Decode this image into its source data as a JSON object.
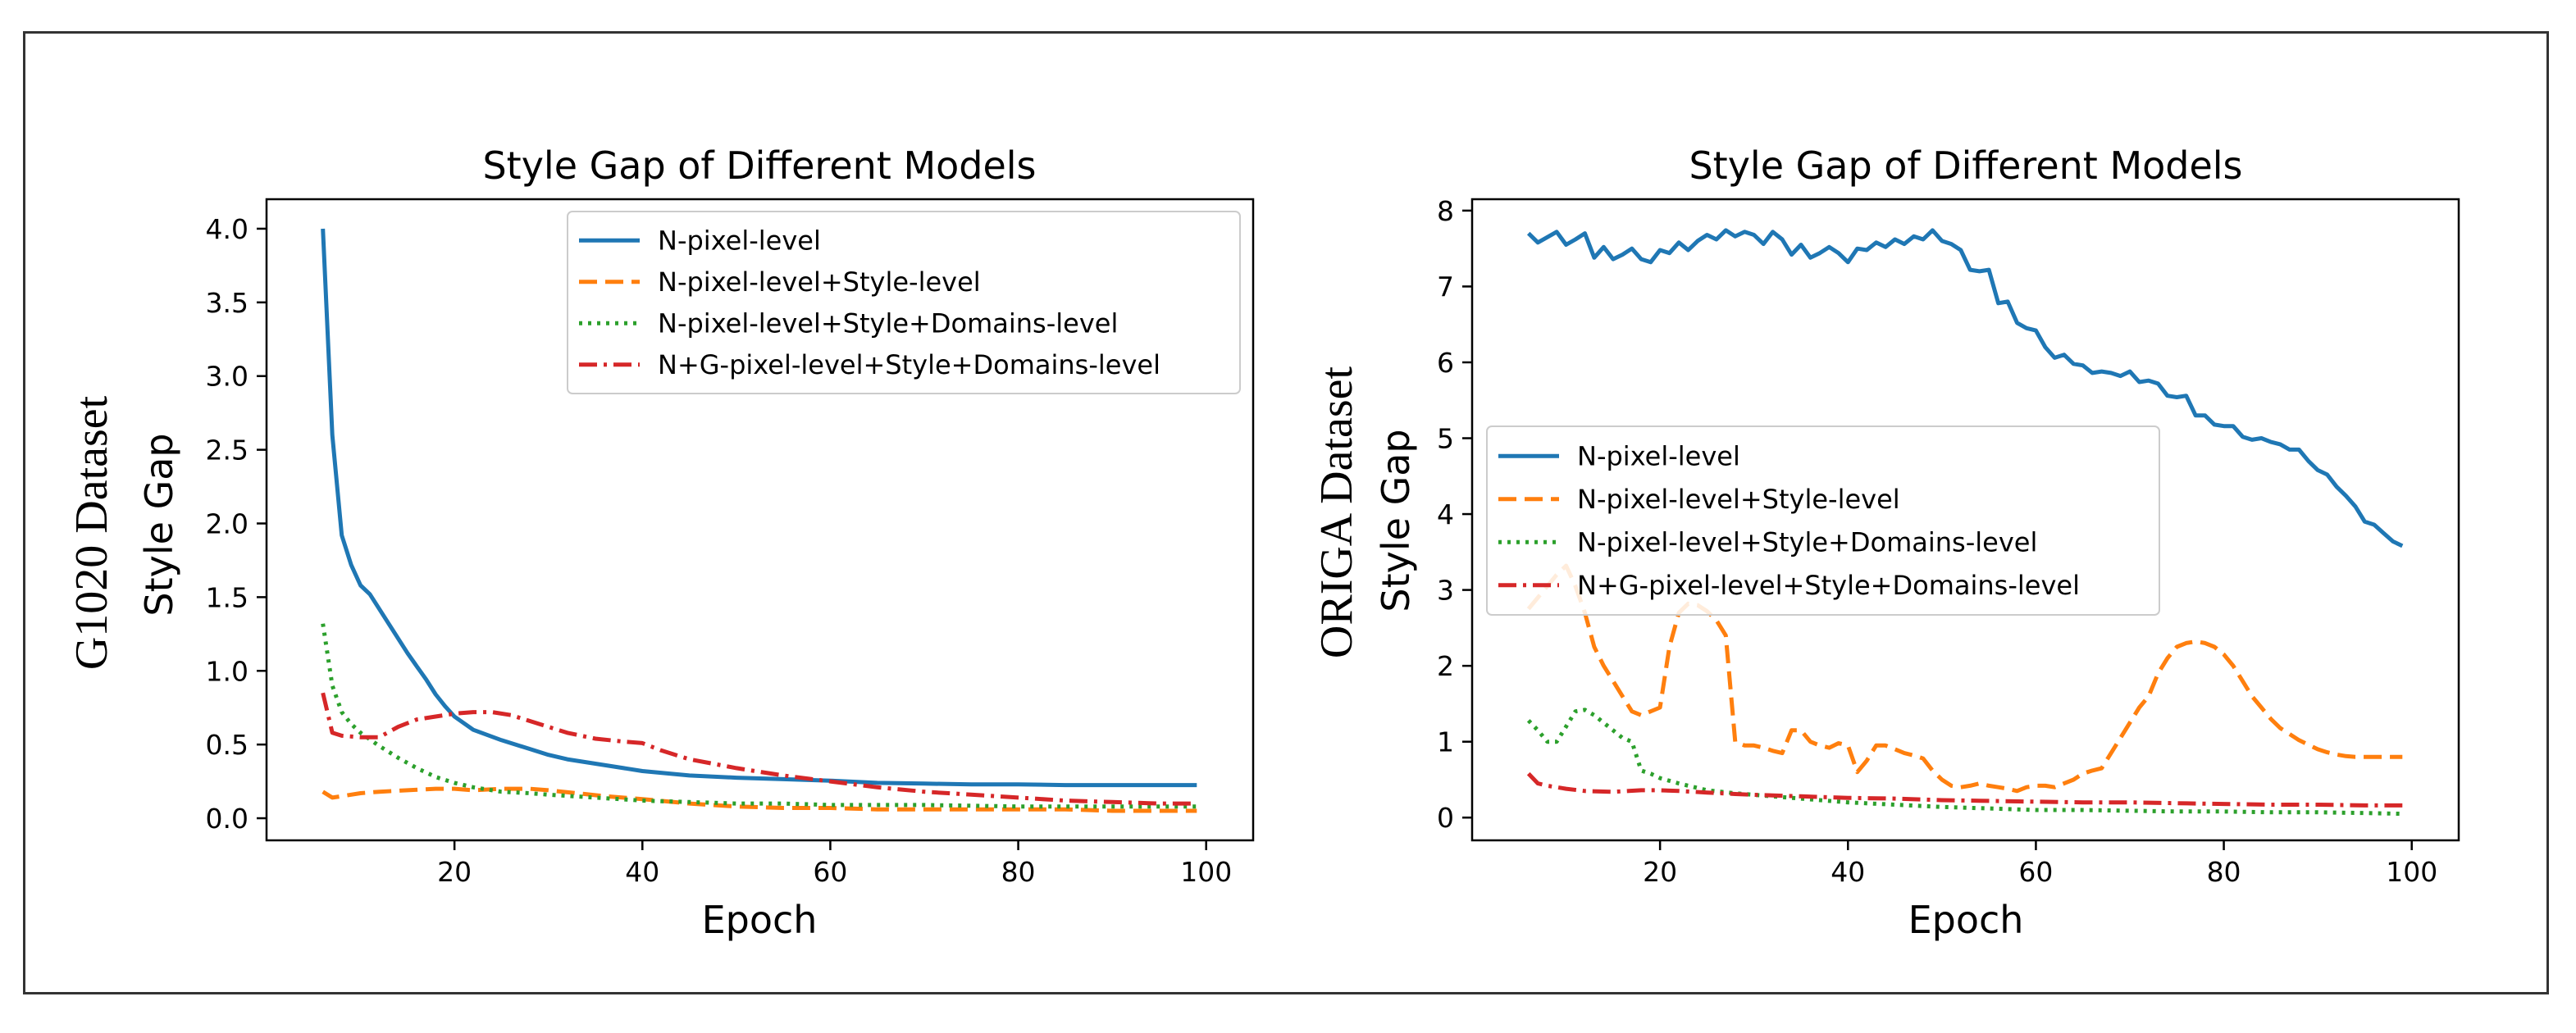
{
  "chart_data": [
    {
      "type": "line",
      "title": "Style Gap of Different Models",
      "dataset_label": "G1020 Dataset",
      "xlabel": "Epoch",
      "ylabel": "Style Gap",
      "xlim": [
        0,
        105
      ],
      "ylim": [
        -0.15,
        4.2
      ],
      "xticks": [
        20,
        40,
        60,
        80,
        100
      ],
      "yticks": [
        "0.0",
        "0.5",
        "1.0",
        "1.5",
        "2.0",
        "2.5",
        "3.0",
        "3.5",
        "4.0"
      ],
      "legend_position": "upper right",
      "series": [
        {
          "name": "N-pixel-level",
          "style": "solid",
          "color": "#1f77b4",
          "x": [
            6,
            7,
            8,
            9,
            10,
            11,
            12,
            13,
            14,
            15,
            16,
            17,
            18,
            19,
            20,
            22,
            25,
            28,
            30,
            32,
            35,
            38,
            40,
            45,
            50,
            55,
            60,
            65,
            70,
            75,
            80,
            85,
            90,
            95,
            99
          ],
          "y": [
            4.0,
            2.6,
            1.92,
            1.72,
            1.58,
            1.52,
            1.42,
            1.32,
            1.22,
            1.12,
            1.03,
            0.94,
            0.84,
            0.76,
            0.69,
            0.6,
            0.53,
            0.47,
            0.43,
            0.4,
            0.37,
            0.34,
            0.32,
            0.29,
            0.275,
            0.265,
            0.255,
            0.24,
            0.235,
            0.23,
            0.23,
            0.225,
            0.225,
            0.225,
            0.225
          ]
        },
        {
          "name": "N-pixel-level+Style-level",
          "style": "dashed",
          "color": "#ff7f0e",
          "x": [
            6,
            7,
            8,
            10,
            12,
            15,
            18,
            20,
            22,
            25,
            28,
            30,
            33,
            36,
            40,
            45,
            50,
            55,
            60,
            65,
            70,
            75,
            80,
            85,
            90,
            95,
            99
          ],
          "y": [
            0.18,
            0.14,
            0.15,
            0.17,
            0.18,
            0.19,
            0.2,
            0.2,
            0.19,
            0.2,
            0.2,
            0.19,
            0.17,
            0.15,
            0.13,
            0.1,
            0.08,
            0.07,
            0.07,
            0.06,
            0.06,
            0.06,
            0.06,
            0.06,
            0.05,
            0.05,
            0.05
          ]
        },
        {
          "name": "N-pixel-level+Style+Domains-level",
          "style": "dotted",
          "color": "#2ca02c",
          "x": [
            6,
            7,
            8,
            9,
            10,
            12,
            14,
            16,
            18,
            20,
            22,
            25,
            28,
            30,
            35,
            40,
            45,
            50,
            55,
            60,
            65,
            70,
            75,
            80,
            85,
            90,
            95,
            99
          ],
          "y": [
            1.32,
            0.9,
            0.72,
            0.64,
            0.58,
            0.49,
            0.41,
            0.34,
            0.28,
            0.24,
            0.21,
            0.18,
            0.17,
            0.16,
            0.14,
            0.12,
            0.11,
            0.1,
            0.1,
            0.09,
            0.09,
            0.09,
            0.085,
            0.08,
            0.08,
            0.08,
            0.08,
            0.08
          ]
        },
        {
          "name": "N+G-pixel-level+Style+Domains-level",
          "style": "dashdot",
          "color": "#d62728",
          "x": [
            6,
            7,
            8,
            10,
            12,
            14,
            16,
            18,
            20,
            22,
            24,
            26,
            28,
            30,
            32,
            35,
            38,
            40,
            42,
            45,
            50,
            55,
            60,
            65,
            70,
            75,
            80,
            85,
            90,
            95,
            99
          ],
          "y": [
            0.85,
            0.58,
            0.56,
            0.55,
            0.55,
            0.62,
            0.67,
            0.69,
            0.71,
            0.72,
            0.72,
            0.7,
            0.66,
            0.62,
            0.58,
            0.54,
            0.52,
            0.51,
            0.46,
            0.4,
            0.34,
            0.29,
            0.25,
            0.21,
            0.18,
            0.16,
            0.14,
            0.12,
            0.11,
            0.1,
            0.1
          ]
        }
      ]
    },
    {
      "type": "line",
      "title": "Style Gap of Different Models",
      "dataset_label": "ORIGA Dataset",
      "xlabel": "Epoch",
      "ylabel": "Style Gap",
      "xlim": [
        0,
        105
      ],
      "ylim": [
        -0.3,
        8.15
      ],
      "xticks": [
        20,
        40,
        60,
        80,
        100
      ],
      "yticks": [
        "0",
        "1",
        "2",
        "3",
        "4",
        "5",
        "6",
        "7",
        "8"
      ],
      "legend_position": "center left",
      "series": [
        {
          "name": "N-pixel-level",
          "style": "solid",
          "color": "#1f77b4",
          "x": [
            6,
            7,
            8,
            9,
            10,
            11,
            12,
            13,
            14,
            15,
            16,
            17,
            18,
            19,
            20,
            21,
            22,
            23,
            24,
            25,
            26,
            27,
            28,
            29,
            30,
            31,
            32,
            33,
            34,
            35,
            36,
            37,
            38,
            39,
            40,
            41,
            42,
            43,
            44,
            45,
            46,
            47,
            48,
            49,
            50,
            51,
            52,
            53,
            54,
            55,
            56,
            57,
            58,
            59,
            60,
            61,
            62,
            63,
            64,
            65,
            66,
            67,
            68,
            69,
            70,
            71,
            72,
            73,
            74,
            75,
            76,
            77,
            78,
            79,
            80,
            81,
            82,
            83,
            84,
            85,
            86,
            87,
            88,
            89,
            90,
            91,
            92,
            93,
            94,
            95,
            96,
            97,
            98,
            99
          ],
          "y": [
            7.7,
            7.58,
            7.65,
            7.72,
            7.55,
            7.62,
            7.7,
            7.38,
            7.52,
            7.36,
            7.42,
            7.5,
            7.36,
            7.32,
            7.48,
            7.44,
            7.58,
            7.48,
            7.6,
            7.68,
            7.62,
            7.74,
            7.66,
            7.72,
            7.68,
            7.56,
            7.72,
            7.62,
            7.42,
            7.55,
            7.38,
            7.44,
            7.52,
            7.44,
            7.32,
            7.5,
            7.48,
            7.58,
            7.52,
            7.62,
            7.56,
            7.66,
            7.62,
            7.74,
            7.6,
            7.56,
            7.48,
            7.22,
            7.2,
            7.22,
            6.78,
            6.8,
            6.52,
            6.45,
            6.42,
            6.2,
            6.06,
            6.1,
            5.98,
            5.96,
            5.86,
            5.88,
            5.86,
            5.82,
            5.88,
            5.74,
            5.76,
            5.72,
            5.56,
            5.54,
            5.56,
            5.3,
            5.3,
            5.18,
            5.16,
            5.16,
            5.02,
            4.98,
            5.0,
            4.95,
            4.92,
            4.85,
            4.85,
            4.7,
            4.58,
            4.52,
            4.36,
            4.24,
            4.1,
            3.9,
            3.86,
            3.75,
            3.64,
            3.58
          ]
        },
        {
          "name": "N-pixel-level+Style-level",
          "style": "dashed",
          "color": "#ff7f0e",
          "x": [
            6,
            7,
            8,
            9,
            10,
            11,
            12,
            13,
            14,
            15,
            16,
            17,
            18,
            19,
            20,
            21,
            22,
            23,
            24,
            25,
            26,
            27,
            28,
            29,
            30,
            31,
            32,
            33,
            34,
            35,
            36,
            37,
            38,
            39,
            40,
            41,
            42,
            43,
            44,
            45,
            46,
            47,
            48,
            49,
            50,
            51,
            52,
            53,
            54,
            55,
            56,
            57,
            58,
            59,
            60,
            61,
            62,
            63,
            64,
            65,
            66,
            67,
            68,
            69,
            70,
            71,
            72,
            73,
            74,
            75,
            76,
            77,
            78,
            79,
            80,
            81,
            82,
            83,
            84,
            85,
            86,
            87,
            88,
            89,
            90,
            91,
            92,
            93,
            94,
            95,
            96,
            97,
            98,
            99
          ],
          "y": [
            2.75,
            2.9,
            3.05,
            3.2,
            3.32,
            3.05,
            2.7,
            2.25,
            2.0,
            1.8,
            1.6,
            1.4,
            1.35,
            1.4,
            1.45,
            2.25,
            2.7,
            2.82,
            2.8,
            2.72,
            2.6,
            2.4,
            1.0,
            0.95,
            0.95,
            0.92,
            0.88,
            0.85,
            1.15,
            1.15,
            1.0,
            0.95,
            0.92,
            0.98,
            0.95,
            0.6,
            0.75,
            0.95,
            0.95,
            0.9,
            0.85,
            0.82,
            0.78,
            0.62,
            0.5,
            0.42,
            0.4,
            0.42,
            0.45,
            0.42,
            0.4,
            0.38,
            0.35,
            0.4,
            0.42,
            0.42,
            0.4,
            0.45,
            0.5,
            0.58,
            0.62,
            0.65,
            0.85,
            1.05,
            1.25,
            1.45,
            1.6,
            1.9,
            2.1,
            2.25,
            2.3,
            2.32,
            2.3,
            2.25,
            2.15,
            2.0,
            1.8,
            1.6,
            1.45,
            1.3,
            1.18,
            1.1,
            1.02,
            0.96,
            0.9,
            0.86,
            0.83,
            0.81,
            0.8,
            0.8,
            0.8,
            0.8,
            0.8,
            0.8
          ]
        },
        {
          "name": "N-pixel-level+Style+Domains-level",
          "style": "dotted",
          "color": "#2ca02c",
          "x": [
            6,
            7,
            8,
            9,
            10,
            11,
            12,
            13,
            14,
            15,
            16,
            17,
            18,
            19,
            20,
            22,
            25,
            28,
            30,
            35,
            40,
            45,
            50,
            55,
            60,
            65,
            70,
            75,
            80,
            85,
            90,
            95,
            99
          ],
          "y": [
            1.28,
            1.15,
            1.0,
            1.0,
            1.2,
            1.4,
            1.42,
            1.35,
            1.25,
            1.15,
            1.05,
            1.0,
            0.62,
            0.58,
            0.52,
            0.45,
            0.36,
            0.32,
            0.3,
            0.25,
            0.2,
            0.17,
            0.14,
            0.12,
            0.1,
            0.1,
            0.09,
            0.08,
            0.08,
            0.07,
            0.07,
            0.06,
            0.05
          ]
        },
        {
          "name": "N+G-pixel-level+Style+Domains-level",
          "style": "dashdot",
          "color": "#d62728",
          "x": [
            6,
            7,
            8,
            10,
            12,
            15,
            18,
            20,
            22,
            25,
            28,
            30,
            35,
            40,
            45,
            50,
            55,
            60,
            65,
            70,
            75,
            80,
            85,
            90,
            95,
            99
          ],
          "y": [
            0.58,
            0.45,
            0.42,
            0.38,
            0.35,
            0.34,
            0.36,
            0.36,
            0.35,
            0.33,
            0.31,
            0.3,
            0.28,
            0.26,
            0.25,
            0.23,
            0.22,
            0.21,
            0.2,
            0.2,
            0.19,
            0.18,
            0.17,
            0.17,
            0.16,
            0.16
          ]
        }
      ]
    }
  ]
}
